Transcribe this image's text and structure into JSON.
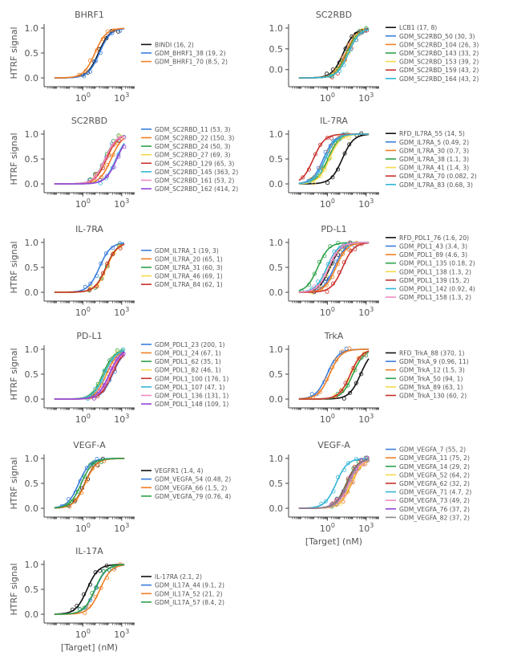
{
  "figure": {
    "y_axis_label": "HTRF signal",
    "x_axis_label": "[Target] (nM)",
    "x_tick_base": "10"
  },
  "colors": {
    "ref": "#111111",
    "palette": [
      "#3b7ddd",
      "#f07f24",
      "#2fa14a",
      "#f5d94c",
      "#c8312c",
      "#33b6d8",
      "#f28ac3",
      "#9446d6",
      "#888888"
    ],
    "axis": "#444444",
    "text": "#555555"
  },
  "chart_data": [
    {
      "type": "line",
      "title": "BHRF1",
      "ylim": [
        0,
        1
      ],
      "yticks": [
        "0.0",
        "0.5",
        "1.0"
      ],
      "xticks": [
        "0",
        "3"
      ],
      "xlim_log10": [
        -3,
        4
      ],
      "show_ylabel": true,
      "show_xlabel": false,
      "series": [
        {
          "name": "BINDI (16, 2)",
          "ref": true,
          "ec50": 16,
          "hill": 1.0
        },
        {
          "name": "GDM_BHRF1_38 (19, 2)",
          "ec50": 19,
          "hill": 1.0
        },
        {
          "name": "GDM_BHRF1_70 (8.5, 2)",
          "ec50": 8.5,
          "hill": 1.0
        }
      ]
    },
    {
      "type": "line",
      "title": "SC2RBD",
      "ylim": [
        -0.2,
        1
      ],
      "yticks": [
        "0.0",
        "0.5",
        "1.0"
      ],
      "xticks": [
        "0",
        "3"
      ],
      "xlim_log10": [
        -3,
        4
      ],
      "show_ylabel": false,
      "show_xlabel": false,
      "series": [
        {
          "name": "LCB1 (17, 8)",
          "ref": true,
          "ec50": 17,
          "hill": 1.0
        },
        {
          "name": "GDM_SC2RBD_50 (30, 3)",
          "ec50": 30,
          "hill": 1.0
        },
        {
          "name": "GDM_SC2RBD_104 (26, 3)",
          "ec50": 26,
          "hill": 1.0
        },
        {
          "name": "GDM_SC2RBD_143 (33, 2)",
          "ec50": 33,
          "hill": 1.0
        },
        {
          "name": "GDM_SC2RBD_153 (39, 2)",
          "ec50": 39,
          "hill": 1.0
        },
        {
          "name": "GDM_SC2RBD_159 (43, 2)",
          "ec50": 43,
          "hill": 1.0
        },
        {
          "name": "GDM_SC2RBD_164 (43, 2)",
          "ec50": 43,
          "hill": 1.0
        }
      ]
    },
    {
      "type": "line",
      "title": "SC2RBD",
      "ylim": [
        0,
        1
      ],
      "yticks": [
        "0.0",
        "0.5",
        "1.0"
      ],
      "xticks": [
        "0",
        "3"
      ],
      "xlim_log10": [
        -3,
        4
      ],
      "show_ylabel": true,
      "show_xlabel": false,
      "series": [
        {
          "name": "GDM_SC2RBD_11 (53, 3)",
          "ec50": 53,
          "hill": 1.0
        },
        {
          "name": "GDM_SC2RBD_22 (150, 3)",
          "ec50": 150,
          "hill": 1.0
        },
        {
          "name": "GDM_SC2RBD_24 (50, 3)",
          "ec50": 50,
          "hill": 1.0
        },
        {
          "name": "GDM_SC2RBD_27 (69, 3)",
          "ec50": 69,
          "hill": 1.0
        },
        {
          "name": "GDM_SC2RBD_129 (65, 3)",
          "ec50": 65,
          "hill": 1.0
        },
        {
          "name": "GDM_SC2RBD_145 (363, 2)",
          "ec50": 363,
          "hill": 1.0
        },
        {
          "name": "GDM_SC2RBD_161 (53, 2)",
          "ec50": 53,
          "hill": 1.0
        },
        {
          "name": "GDM_SC2RBD_162 (414, 2)",
          "ec50": 414,
          "hill": 1.0
        }
      ]
    },
    {
      "type": "line",
      "title": "IL-7RA",
      "ylim": [
        0,
        1
      ],
      "yticks": [
        "0.0",
        "0.5",
        "1.0"
      ],
      "xticks": [
        "0",
        "3"
      ],
      "xlim_log10": [
        -3,
        4
      ],
      "show_ylabel": false,
      "show_xlabel": false,
      "series": [
        {
          "name": "RFD_IL7RA_55 (14, 5)",
          "ref": true,
          "ec50": 14,
          "hill": 1.0
        },
        {
          "name": "GDM_IL7RA_5 (0.49, 2)",
          "ec50": 0.49,
          "hill": 1.0
        },
        {
          "name": "GDM_IL7RA_30 (0.7, 3)",
          "ec50": 0.7,
          "hill": 1.0
        },
        {
          "name": "GDM_IL7RA_38 (1.1, 3)",
          "ec50": 1.1,
          "hill": 1.0
        },
        {
          "name": "GDM_IL7RA_41 (1.4, 3)",
          "ec50": 1.4,
          "hill": 1.0
        },
        {
          "name": "GDM_IL7RA_70 (0.082, 2)",
          "ec50": 0.082,
          "hill": 1.0
        },
        {
          "name": "GDM_IL7RA_83 (0.68, 3)",
          "ec50": 0.68,
          "hill": 1.0
        }
      ]
    },
    {
      "type": "line",
      "title": "IL-7RA",
      "ylim": [
        0,
        1
      ],
      "yticks": [
        "0.0",
        "0.5",
        "1.0"
      ],
      "xticks": [
        "0",
        "3"
      ],
      "xlim_log10": [
        -3,
        4
      ],
      "show_ylabel": true,
      "show_xlabel": false,
      "series": [
        {
          "name": "GDM_IL7RA_1 (19, 3)",
          "ec50": 19,
          "hill": 1.0
        },
        {
          "name": "GDM_IL7RA_20 (65, 1)",
          "ec50": 65,
          "hill": 1.0
        },
        {
          "name": "GDM_IL7RA_31 (60, 3)",
          "ec50": 60,
          "hill": 1.0
        },
        {
          "name": "GDM_IL7RA_46 (69, 1)",
          "ec50": 69,
          "hill": 1.0
        },
        {
          "name": "GDM_IL7RA_84 (62, 1)",
          "ec50": 62,
          "hill": 1.0
        }
      ]
    },
    {
      "type": "line",
      "title": "PD-L1",
      "ylim": [
        0,
        1
      ],
      "yticks": [
        "0.0",
        "0.5",
        "1.0"
      ],
      "xticks": [
        "0",
        "3"
      ],
      "xlim_log10": [
        -3,
        4
      ],
      "show_ylabel": false,
      "show_xlabel": false,
      "series": [
        {
          "name": "RFD_PDL1_76 (1.6, 20)",
          "ref": true,
          "ec50": 1.6,
          "hill": 1.0
        },
        {
          "name": "GDM_PDL1_43 (3.4, 3)",
          "ec50": 3.4,
          "hill": 1.0
        },
        {
          "name": "GDM_PDL1_89 (4.6, 3)",
          "ec50": 4.6,
          "hill": 1.0
        },
        {
          "name": "GDM_PDL1_135 (0.18, 2)",
          "ec50": 0.18,
          "hill": 1.0
        },
        {
          "name": "GDM_PDL1_138 (1.3, 2)",
          "ec50": 1.3,
          "hill": 1.0
        },
        {
          "name": "GDM_PDL1_139 (15, 2)",
          "ec50": 15,
          "hill": 1.0
        },
        {
          "name": "GDM_PDL1_142 (0.92, 4)",
          "ec50": 0.92,
          "hill": 1.0
        },
        {
          "name": "GDM_PDL1_158 (1.3, 2)",
          "ec50": 1.3,
          "hill": 1.0
        }
      ]
    },
    {
      "type": "line",
      "title": "PD-L1",
      "ylim": [
        0,
        1
      ],
      "yticks": [
        "0.0",
        "0.5",
        "1.0"
      ],
      "xticks": [
        "0",
        "3"
      ],
      "xlim_log10": [
        -3,
        4
      ],
      "show_ylabel": true,
      "show_xlabel": false,
      "series": [
        {
          "name": "GDM_PDL1_23 (200, 1)",
          "ec50": 200,
          "hill": 1.0
        },
        {
          "name": "GDM_PDL1_24 (67, 1)",
          "ec50": 67,
          "hill": 1.0
        },
        {
          "name": "GDM_PDL1_62 (35, 1)",
          "ec50": 35,
          "hill": 1.0
        },
        {
          "name": "GDM_PDL1_82 (46, 1)",
          "ec50": 46,
          "hill": 1.0
        },
        {
          "name": "GDM_PDL1_100 (176, 1)",
          "ec50": 176,
          "hill": 1.0
        },
        {
          "name": "GDM_PDL1_107 (47, 1)",
          "ec50": 47,
          "hill": 1.0
        },
        {
          "name": "GDM_PDL1_136 (131, 1)",
          "ec50": 131,
          "hill": 1.0
        },
        {
          "name": "GDM_PDL1_148 (109, 1)",
          "ec50": 109,
          "hill": 1.0
        }
      ]
    },
    {
      "type": "line",
      "title": "TrkA",
      "ylim": [
        0,
        1
      ],
      "yticks": [
        "0.0",
        "0.5",
        "1.0"
      ],
      "xticks": [
        "0",
        "3"
      ],
      "xlim_log10": [
        -3,
        4
      ],
      "show_ylabel": false,
      "show_xlabel": false,
      "series": [
        {
          "name": "RFD_TrkA_88 (370, 1)",
          "ref": true,
          "ec50": 370,
          "hill": 1.0
        },
        {
          "name": "GDM_TrkA_9 (0.96, 11)",
          "ec50": 0.96,
          "hill": 1.0
        },
        {
          "name": "GDM_TrkA_12 (1.5, 3)",
          "ec50": 1.5,
          "hill": 1.0
        },
        {
          "name": "GDM_TrkA_50 (94, 1)",
          "ec50": 94,
          "hill": 1.0
        },
        {
          "name": "GDM_TrkA_89 (63, 1)",
          "ec50": 63,
          "hill": 1.0
        },
        {
          "name": "GDM_TrkA_130 (60, 2)",
          "ec50": 60,
          "hill": 1.0
        }
      ]
    },
    {
      "type": "line",
      "title": "VEGF-A",
      "ylim": [
        0,
        1
      ],
      "yticks": [
        "0.0",
        "0.5",
        "1.0"
      ],
      "xticks": [
        "0",
        "3"
      ],
      "xlim_log10": [
        -3,
        4
      ],
      "show_ylabel": true,
      "show_xlabel": false,
      "series": [
        {
          "name": "VEGFR1 (1.4, 4)",
          "ref": true,
          "ec50": 1.4,
          "hill": 1.0
        },
        {
          "name": "GDM_VEGFA_54 (0.48, 2)",
          "ec50": 0.48,
          "hill": 1.0
        },
        {
          "name": "GDM_VEGFA_66 (1.5, 2)",
          "ec50": 1.5,
          "hill": 1.0
        },
        {
          "name": "GDM_VEGFA_79 (0.76, 4)",
          "ec50": 0.76,
          "hill": 1.0
        }
      ]
    },
    {
      "type": "line",
      "title": "VEGF-A",
      "ylim": [
        0,
        1
      ],
      "yticks": [
        "0.0",
        "0.5",
        "1.0"
      ],
      "xticks": [
        "0",
        "3"
      ],
      "xlim_log10": [
        -3,
        4
      ],
      "show_ylabel": false,
      "show_xlabel": true,
      "series": [
        {
          "name": "GDM_VEGFA_7 (55, 2)",
          "ec50": 55,
          "hill": 1.0
        },
        {
          "name": "GDM_VEGFA_11 (75, 2)",
          "ec50": 75,
          "hill": 1.0
        },
        {
          "name": "GDM_VEGFA_14 (29, 2)",
          "ec50": 29,
          "hill": 1.0
        },
        {
          "name": "GDM_VEGFA_52 (64, 2)",
          "ec50": 64,
          "hill": 1.0
        },
        {
          "name": "GDM_VEGFA_62 (32, 2)",
          "ec50": 32,
          "hill": 1.0
        },
        {
          "name": "GDM_VEGFA_71 (4.7, 2)",
          "ec50": 4.7,
          "hill": 1.0
        },
        {
          "name": "GDM_VEGFA_73 (49, 2)",
          "ec50": 49,
          "hill": 1.0
        },
        {
          "name": "GDM_VEGFA_76 (37, 2)",
          "ec50": 37,
          "hill": 1.0
        },
        {
          "name": "GDM_VEGFA_82 (37, 2)",
          "ec50": 37,
          "hill": 1.0
        }
      ]
    },
    {
      "type": "line",
      "title": "IL-17A",
      "ylim": [
        0,
        1
      ],
      "yticks": [
        "0.0",
        "0.5",
        "1.0"
      ],
      "xticks": [
        "0",
        "3"
      ],
      "xlim_log10": [
        -3,
        4
      ],
      "show_ylabel": true,
      "show_xlabel": true,
      "series": [
        {
          "name": "IL-17RA (2.1, 2)",
          "ref": true,
          "ec50": 2.1,
          "hill": 1.0
        },
        {
          "name": "GDM_IL17A_44 (9.1, 2)",
          "ec50": 9.1,
          "hill": 1.0
        },
        {
          "name": "GDM_IL17A_52 (21, 2)",
          "ec50": 21,
          "hill": 1.0
        },
        {
          "name": "GDM_IL17A_57 (8.4, 2)",
          "ec50": 8.4,
          "hill": 1.0
        }
      ]
    }
  ]
}
